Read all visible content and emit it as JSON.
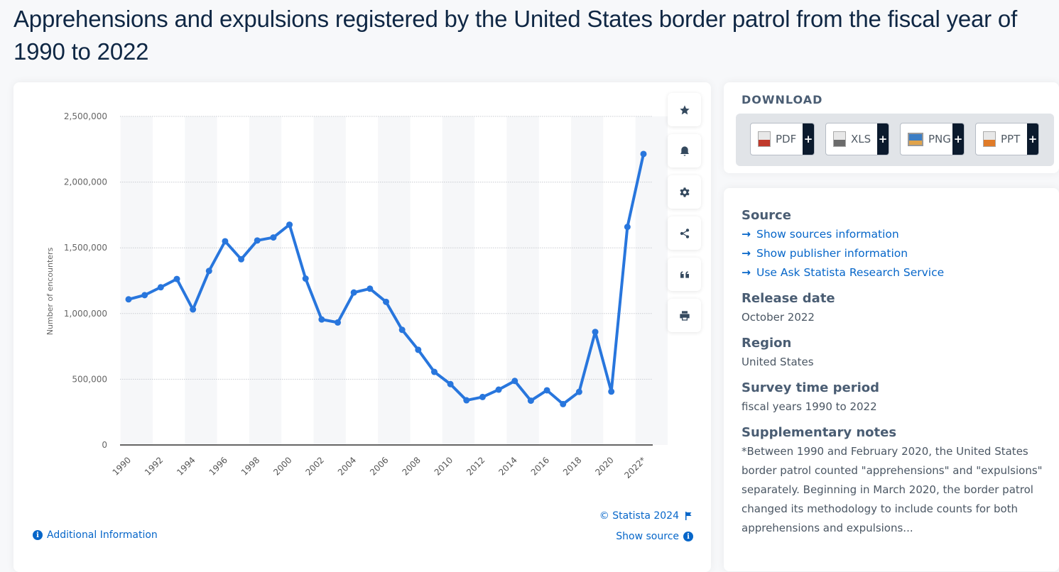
{
  "title": "Apprehensions and expulsions registered by the United States border patrol from the fiscal year of 1990 to 2022",
  "chart_toolbar": [
    {
      "name": "favorite",
      "icon": "star-icon"
    },
    {
      "name": "notification",
      "icon": "bell-icon"
    },
    {
      "name": "settings",
      "icon": "gear-icon"
    },
    {
      "name": "share",
      "icon": "share-icon"
    },
    {
      "name": "cite",
      "icon": "quote-icon"
    },
    {
      "name": "print",
      "icon": "printer-icon"
    }
  ],
  "chart_footer": {
    "copyright": "© Statista 2024",
    "show_source": "Show source",
    "additional_info": "Additional Information"
  },
  "download": {
    "title": "DOWNLOAD",
    "buttons": [
      {
        "label": "PDF",
        "plus": "+",
        "color": "#c0392b"
      },
      {
        "label": "XLS",
        "plus": "+",
        "color": "#6b6b6b"
      },
      {
        "label": "PNG",
        "plus": "+",
        "color": "#3b7dc4"
      },
      {
        "label": "PPT",
        "plus": "+",
        "color": "#e07b28"
      }
    ]
  },
  "info": {
    "source_heading": "Source",
    "source_links": [
      "Show sources information",
      "Show publisher information",
      "Use Ask Statista Research Service"
    ],
    "release_heading": "Release date",
    "release_value": "October 2022",
    "region_heading": "Region",
    "region_value": "United States",
    "period_heading": "Survey time period",
    "period_value": "fiscal years 1990 to 2022",
    "notes_heading": "Supplementary notes",
    "notes_text": "*Between 1990 and February 2020, the United States border patrol counted \"apprehensions\" and \"expulsions\" separately. Beginning in March 2020, the border patrol changed its methodology to include counts for both apprehensions and expulsions..."
  },
  "chart_data": {
    "type": "line",
    "title": "",
    "xlabel": "",
    "ylabel": "Number of encounters",
    "ylim": [
      0,
      2500000
    ],
    "yticks": [
      0,
      500000,
      1000000,
      1500000,
      2000000,
      2500000
    ],
    "ytick_labels": [
      "0",
      "500,000",
      "1,000,000",
      "1,500,000",
      "2,000,000",
      "2,500,000"
    ],
    "xtick_labels": [
      "1990",
      "1992",
      "1994",
      "1996",
      "1998",
      "2000",
      "2002",
      "2004",
      "2006",
      "2008",
      "2010",
      "2012",
      "2014",
      "2016",
      "2018",
      "2020",
      "2022*"
    ],
    "grid": true,
    "legend": "none",
    "series_color": "#2876dd",
    "x": [
      1990,
      1991,
      1992,
      1993,
      1994,
      1995,
      1996,
      1997,
      1998,
      1999,
      2000,
      2001,
      2002,
      2003,
      2004,
      2005,
      2006,
      2007,
      2008,
      2009,
      2010,
      2011,
      2012,
      2013,
      2014,
      2015,
      2016,
      2017,
      2018,
      2019,
      2020,
      2021,
      2022
    ],
    "series": [
      {
        "name": "Number of encounters",
        "values": [
          1108000,
          1140000,
          1200000,
          1263000,
          1031000,
          1324000,
          1550000,
          1413000,
          1556000,
          1579000,
          1676000,
          1266000,
          955000,
          932000,
          1160000,
          1189000,
          1089000,
          876000,
          724000,
          556000,
          463000,
          340000,
          365000,
          421000,
          487000,
          337000,
          416000,
          311000,
          404000,
          860000,
          406000,
          1659000,
          2214000
        ]
      }
    ]
  }
}
